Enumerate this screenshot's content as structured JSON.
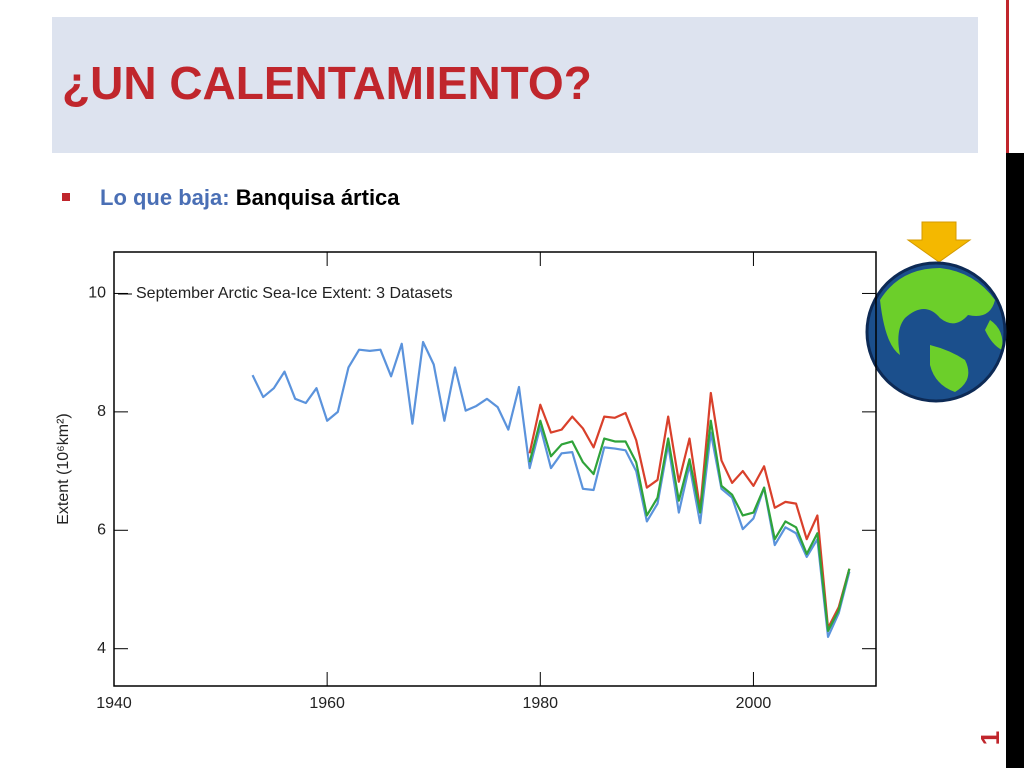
{
  "slide": {
    "title": "¿UN CALENTAMIENTO?",
    "bullet_label": "Lo que baja:",
    "bullet_text": "Banquisa ártica",
    "page_number": "1"
  },
  "chart_data": {
    "type": "line",
    "title": "September Arctic Sea-Ice Extent: 3 Datasets",
    "y_label": "Extent (10⁶km²)",
    "x": [
      1953,
      1954,
      1955,
      1956,
      1957,
      1958,
      1959,
      1960,
      1961,
      1962,
      1963,
      1964,
      1965,
      1966,
      1967,
      1968,
      1969,
      1970,
      1971,
      1972,
      1973,
      1974,
      1975,
      1976,
      1977,
      1978,
      1979,
      1980,
      1981,
      1982,
      1983,
      1984,
      1985,
      1986,
      1987,
      1988,
      1989,
      1990,
      1991,
      1992,
      1993,
      1994,
      1995,
      1996,
      1997,
      1998,
      1999,
      2000,
      2001,
      2002,
      2003,
      2004,
      2005,
      2006,
      2007,
      2008,
      2009
    ],
    "series": [
      {
        "color": "#5b93dc",
        "values": [
          8.62,
          8.25,
          8.4,
          8.68,
          8.22,
          8.15,
          8.4,
          7.85,
          8.0,
          8.75,
          9.05,
          9.03,
          9.05,
          8.6,
          9.15,
          7.8,
          9.18,
          8.8,
          7.85,
          8.75,
          8.02,
          8.1,
          8.22,
          8.08,
          7.7,
          8.42,
          7.05,
          7.75,
          7.05,
          7.3,
          7.32,
          6.7,
          6.68,
          7.4,
          7.38,
          7.35,
          7.0,
          6.15,
          6.45,
          7.45,
          6.3,
          7.1,
          6.12,
          7.65,
          6.7,
          6.55,
          6.02,
          6.2,
          6.72,
          5.75,
          6.05,
          5.95,
          5.55,
          5.85,
          4.2,
          4.6,
          5.3
        ]
      },
      {
        "color": "#d9402b",
        "values": [
          null,
          null,
          null,
          null,
          null,
          null,
          null,
          null,
          null,
          null,
          null,
          null,
          null,
          null,
          null,
          null,
          null,
          null,
          null,
          null,
          null,
          null,
          null,
          null,
          null,
          null,
          7.3,
          8.12,
          7.65,
          7.7,
          7.92,
          7.72,
          7.4,
          7.92,
          7.9,
          7.98,
          7.52,
          6.72,
          6.85,
          7.92,
          6.82,
          7.55,
          6.35,
          8.32,
          7.18,
          6.8,
          7.0,
          6.75,
          7.08,
          6.38,
          6.48,
          6.45,
          5.85,
          6.25,
          4.35,
          4.7,
          5.35
        ]
      },
      {
        "color": "#2fa33a",
        "values": [
          null,
          null,
          null,
          null,
          null,
          null,
          null,
          null,
          null,
          null,
          null,
          null,
          null,
          null,
          null,
          null,
          null,
          null,
          null,
          null,
          null,
          null,
          null,
          null,
          null,
          null,
          7.15,
          7.85,
          7.25,
          7.45,
          7.5,
          7.15,
          6.95,
          7.55,
          7.5,
          7.5,
          7.15,
          6.25,
          6.55,
          7.55,
          6.5,
          7.2,
          6.3,
          7.85,
          6.75,
          6.6,
          6.25,
          6.3,
          6.72,
          5.85,
          6.15,
          6.05,
          5.6,
          5.95,
          4.3,
          4.65,
          5.35
        ]
      }
    ],
    "xlim": [
      1940,
      2011.5
    ],
    "xticks": [
      1940,
      1960,
      1980,
      2000
    ],
    "ylim": [
      3.37,
      10.7
    ],
    "yticks": [
      4,
      6,
      8,
      10
    ],
    "grid": false
  }
}
